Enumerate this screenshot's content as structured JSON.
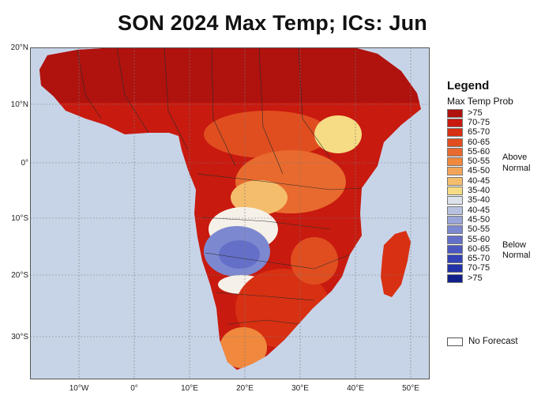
{
  "title": "SON 2024 Max Temp; ICs: Jun",
  "map": {
    "lat_labels": [
      "20°N",
      "10°N",
      "0°",
      "10°S",
      "20°S",
      "30°S"
    ],
    "lon_labels": [
      "10°W",
      "0°",
      "10°E",
      "20°E",
      "30°E",
      "40°E",
      "50°E"
    ],
    "colors": {
      "ocean": "#c7d4e8",
      "grid": "#7a7a7a",
      "border": "#2b2b2b"
    }
  },
  "legend": {
    "title": "Legend",
    "subtitle": "Max Temp Prob",
    "above_note": [
      "Above",
      "Normal"
    ],
    "below_note": [
      "Below",
      "Normal"
    ],
    "items": [
      {
        "label": ">75",
        "color": "#b0120e"
      },
      {
        "label": "70-75",
        "color": "#c81a0f"
      },
      {
        "label": "65-70",
        "color": "#d83012"
      },
      {
        "label": "60-65",
        "color": "#e04e20"
      },
      {
        "label": "55-60",
        "color": "#e86a2e"
      },
      {
        "label": "50-55",
        "color": "#f0893e"
      },
      {
        "label": "45-50",
        "color": "#f2a558"
      },
      {
        "label": "40-45",
        "color": "#f4bd6c"
      },
      {
        "label": "35-40",
        "color": "#f6dc84"
      },
      {
        "label": "35-40",
        "color": "#dde2ea"
      },
      {
        "label": "40-45",
        "color": "#b8c2e0"
      },
      {
        "label": "45-50",
        "color": "#9aa6d8"
      },
      {
        "label": "50-55",
        "color": "#7c89d0"
      },
      {
        "label": "55-60",
        "color": "#6470c8"
      },
      {
        "label": "60-65",
        "color": "#4c58c0"
      },
      {
        "label": "65-70",
        "color": "#3442b6"
      },
      {
        "label": "70-75",
        "color": "#2232a8"
      },
      {
        "label": ">75",
        "color": "#12208c"
      }
    ],
    "no_forecast": "No Forecast"
  }
}
